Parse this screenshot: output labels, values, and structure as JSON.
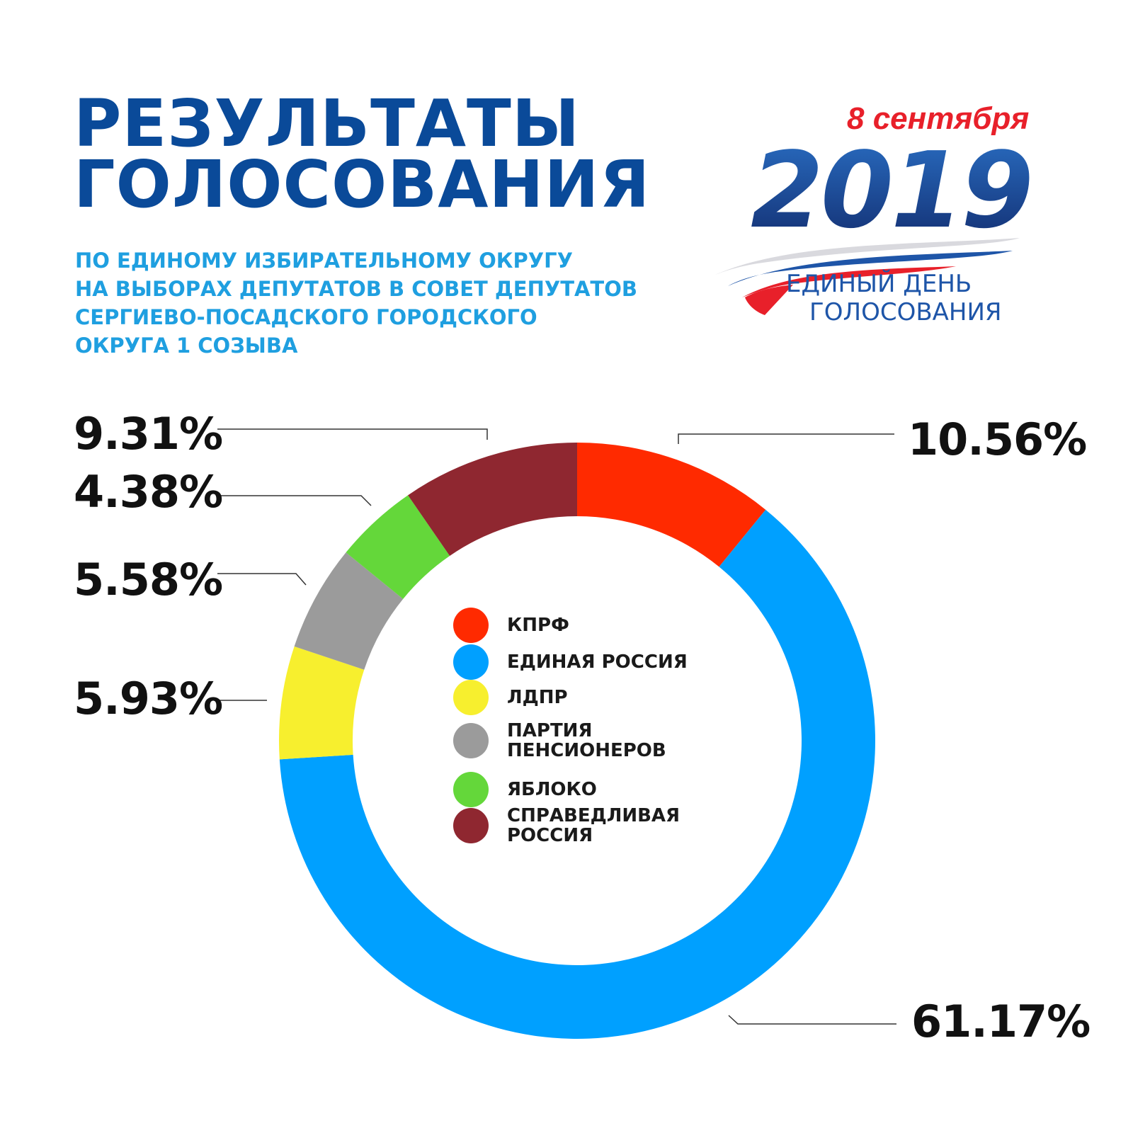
{
  "header": {
    "title_lines": [
      "РЕЗУЛЬТАТЫ",
      "ГОЛОСОВАНИЯ"
    ],
    "subtitle_lines": [
      "ПО ЕДИНОМУ ИЗБИРАТЕЛЬНОМУ ОКРУГУ",
      "НА ВЫБОРАХ ДЕПУТАТОВ В СОВЕТ ДЕПУТАТОВ",
      "СЕРГИЕВО-ПОСАДСКОГО ГОРОДСКОГО",
      "ОКРУГА 1 СОЗЫВА"
    ]
  },
  "logo": {
    "date": "8 сентября",
    "year": "2019",
    "caption_lines": [
      "ЕДИНЫЙ ДЕНЬ",
      "ГОЛОСОВАНИЯ"
    ],
    "colors": {
      "red": "#e8202a",
      "blue": "#1e55a8",
      "white": "#d9d9de"
    }
  },
  "chart_data": {
    "type": "pie",
    "donut": true,
    "title": "",
    "categories": [
      "КПРФ",
      "ЕДИНАЯ РОССИЯ",
      "ЛДПР",
      "ПАРТИЯ ПЕНСИОНЕРОВ",
      "ЯБЛОКО",
      "СПРАВЕДЛИВАЯ РОССИЯ"
    ],
    "legend_labels": [
      [
        "КПРФ"
      ],
      [
        "ЕДИНАЯ РОССИЯ"
      ],
      [
        "ЛДПР"
      ],
      [
        "ПАРТИЯ",
        "ПЕНСИОНЕРОВ"
      ],
      [
        "ЯБЛОКО"
      ],
      [
        "СПРАВЕДЛИВАЯ",
        "РОССИЯ"
      ]
    ],
    "values": [
      10.56,
      61.17,
      5.93,
      5.58,
      4.38,
      9.31
    ],
    "value_labels": [
      "10.56%",
      "61.17%",
      "5.93%",
      "5.58%",
      "4.38%",
      "9.31%"
    ],
    "colors": [
      "#ff2a00",
      "#00a0ff",
      "#f7ef2e",
      "#9b9b9b",
      "#64d73a",
      "#8f2730"
    ],
    "legend_placement": "center",
    "direction": "clockwise from top"
  }
}
